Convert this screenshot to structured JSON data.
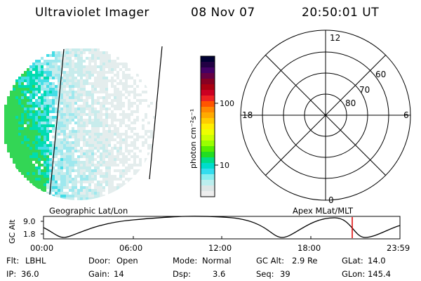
{
  "header": {
    "instrument": "Ultraviolet Imager",
    "date": "08 Nov 07",
    "time": "20:50:01 UT"
  },
  "colorbar": {
    "unit_label": "photon cm⁻²s⁻¹",
    "ticks": [
      "100",
      "10"
    ],
    "colors": [
      "#000033",
      "#220044",
      "#440066",
      "#660044",
      "#880022",
      "#aa0011",
      "#cc0022",
      "#ee2222",
      "#ff5500",
      "#ff8800",
      "#ffaa00",
      "#ffcc00",
      "#ffee00",
      "#eeff00",
      "#ccff00",
      "#99ff00",
      "#55ee00",
      "#22dd22",
      "#00dd88",
      "#00ddcc",
      "#33ddee",
      "#88eeee",
      "#bbeeee",
      "#dde6e6",
      "#eeeeee"
    ]
  },
  "polar": {
    "mlt_labels": {
      "top": "12",
      "left": "18",
      "right": "6",
      "bottom": "0"
    },
    "lat_labels": [
      "60",
      "70",
      "80"
    ]
  },
  "timeline": {
    "left_label": "Geographic Lat/Lon",
    "right_label": "Apex MLat/MLT",
    "axis_label": "GC Alt",
    "y_ticks": [
      "9.0",
      "1.8"
    ],
    "x_ticks": [
      "00:00",
      "06:00",
      "12:00",
      "18:00",
      "23:59"
    ],
    "marker_color": "#dd0000"
  },
  "status": {
    "row1": [
      {
        "label": "Flt:",
        "value": "LBHL"
      },
      {
        "label": "Door:",
        "value": "Open"
      },
      {
        "label": "Mode:",
        "value": "Normal"
      },
      {
        "label": "GC Alt:",
        "value": "2.9 Re"
      },
      {
        "label": "GLat:",
        "value": "14.0"
      }
    ],
    "row2": [
      {
        "label": "IP:",
        "value": "36.0"
      },
      {
        "label": "Gain:",
        "value": "14"
      },
      {
        "label": "Dsp:",
        "value": "3.6"
      },
      {
        "label": "Seq:",
        "value": "39"
      },
      {
        "label": "GLon:",
        "value": "145.4"
      }
    ]
  }
}
